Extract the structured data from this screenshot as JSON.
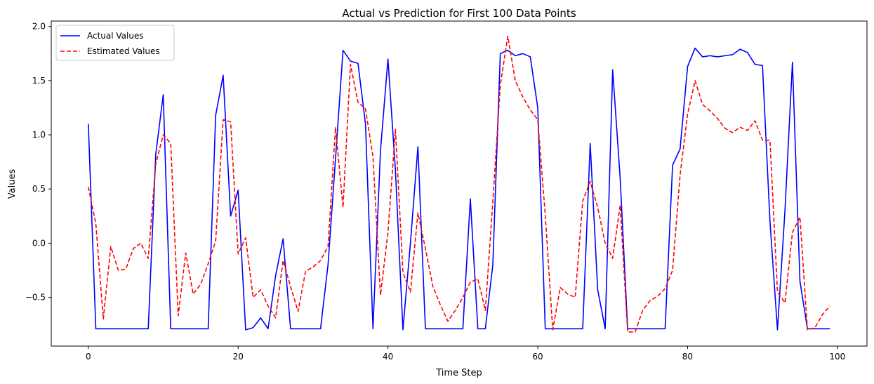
{
  "chart_data": {
    "type": "line",
    "title": "Actual vs Prediction for First 100 Data Points",
    "xlabel": "Time Step",
    "ylabel": "Values",
    "xlim": [
      -4.95,
      103.95
    ],
    "ylim": [
      -0.95,
      2.05
    ],
    "xticks": [
      0,
      20,
      40,
      60,
      80,
      100
    ],
    "yticks": [
      -0.5,
      0.0,
      0.5,
      1.0,
      1.5,
      2.0
    ],
    "xtick_labels": [
      "0",
      "20",
      "40",
      "60",
      "80",
      "100"
    ],
    "ytick_labels": [
      "−0.5",
      "0.0",
      "0.5",
      "1.0",
      "1.5",
      "2.0"
    ],
    "grid": false,
    "legend_position": "upper-left",
    "x": [
      0,
      1,
      2,
      3,
      4,
      5,
      6,
      7,
      8,
      9,
      10,
      11,
      12,
      13,
      14,
      15,
      16,
      17,
      18,
      19,
      20,
      21,
      22,
      23,
      24,
      25,
      26,
      27,
      28,
      29,
      30,
      31,
      32,
      33,
      34,
      35,
      36,
      37,
      38,
      39,
      40,
      41,
      42,
      43,
      44,
      45,
      46,
      47,
      48,
      49,
      50,
      51,
      52,
      53,
      54,
      55,
      56,
      57,
      58,
      59,
      60,
      61,
      62,
      63,
      64,
      65,
      66,
      67,
      68,
      69,
      70,
      71,
      72,
      73,
      74,
      75,
      76,
      77,
      78,
      79,
      80,
      81,
      82,
      83,
      84,
      85,
      86,
      87,
      88,
      89,
      90,
      91,
      92,
      93,
      94,
      95,
      96,
      97,
      98,
      99
    ],
    "series": [
      {
        "name": "Actual Values",
        "color": "#0000ff",
        "dash": "solid",
        "values": [
          1.1,
          -0.79,
          -0.79,
          -0.79,
          -0.79,
          -0.79,
          -0.79,
          -0.79,
          -0.79,
          0.82,
          1.37,
          -0.79,
          -0.79,
          -0.79,
          -0.79,
          -0.79,
          -0.79,
          1.18,
          1.55,
          0.25,
          0.49,
          -0.8,
          -0.78,
          -0.69,
          -0.79,
          -0.3,
          0.04,
          -0.79,
          -0.79,
          -0.79,
          -0.79,
          -0.79,
          -0.2,
          0.78,
          1.78,
          1.68,
          1.66,
          1.1,
          -0.79,
          0.85,
          1.7,
          0.67,
          -0.8,
          0.0,
          0.89,
          -0.79,
          -0.79,
          -0.79,
          -0.79,
          -0.79,
          -0.79,
          0.41,
          -0.79,
          -0.79,
          -0.2,
          1.75,
          1.78,
          1.73,
          1.75,
          1.72,
          1.25,
          -0.79,
          -0.79,
          -0.79,
          -0.79,
          -0.79,
          -0.79,
          0.92,
          -0.43,
          -0.79,
          1.6,
          0.6,
          -0.79,
          -0.79,
          -0.79,
          -0.79,
          -0.79,
          -0.79,
          0.72,
          0.87,
          1.63,
          1.8,
          1.72,
          1.73,
          1.72,
          1.73,
          1.74,
          1.79,
          1.76,
          1.65,
          1.64,
          0.2,
          -0.8,
          0.3,
          1.67,
          -0.35,
          -0.79,
          -0.79,
          -0.79,
          -0.79
        ]
      },
      {
        "name": "Estimated Values",
        "color": "#ff0000",
        "dash": "dashed",
        "values": [
          0.52,
          0.18,
          -0.7,
          -0.03,
          -0.25,
          -0.24,
          -0.05,
          0.0,
          -0.14,
          0.73,
          1.0,
          0.92,
          -0.67,
          -0.09,
          -0.47,
          -0.38,
          -0.19,
          0.02,
          1.14,
          1.12,
          -0.1,
          0.05,
          -0.5,
          -0.43,
          -0.58,
          -0.69,
          -0.16,
          -0.4,
          -0.63,
          -0.26,
          -0.22,
          -0.16,
          -0.03,
          1.07,
          0.33,
          1.65,
          1.3,
          1.24,
          0.8,
          -0.48,
          0.1,
          1.05,
          -0.27,
          -0.45,
          0.28,
          -0.05,
          -0.4,
          -0.57,
          -0.72,
          -0.62,
          -0.5,
          -0.36,
          -0.33,
          -0.62,
          0.38,
          1.46,
          1.91,
          1.5,
          1.35,
          1.23,
          1.14,
          0.26,
          -0.8,
          -0.41,
          -0.47,
          -0.5,
          0.39,
          0.57,
          0.33,
          0.0,
          -0.14,
          0.35,
          -0.82,
          -0.82,
          -0.62,
          -0.53,
          -0.49,
          -0.42,
          -0.25,
          0.63,
          1.19,
          1.5,
          1.28,
          1.22,
          1.15,
          1.06,
          1.02,
          1.07,
          1.04,
          1.13,
          0.95,
          0.95,
          -0.45,
          -0.55,
          0.1,
          0.24,
          -0.8,
          -0.78,
          -0.66,
          -0.58
        ]
      }
    ]
  }
}
